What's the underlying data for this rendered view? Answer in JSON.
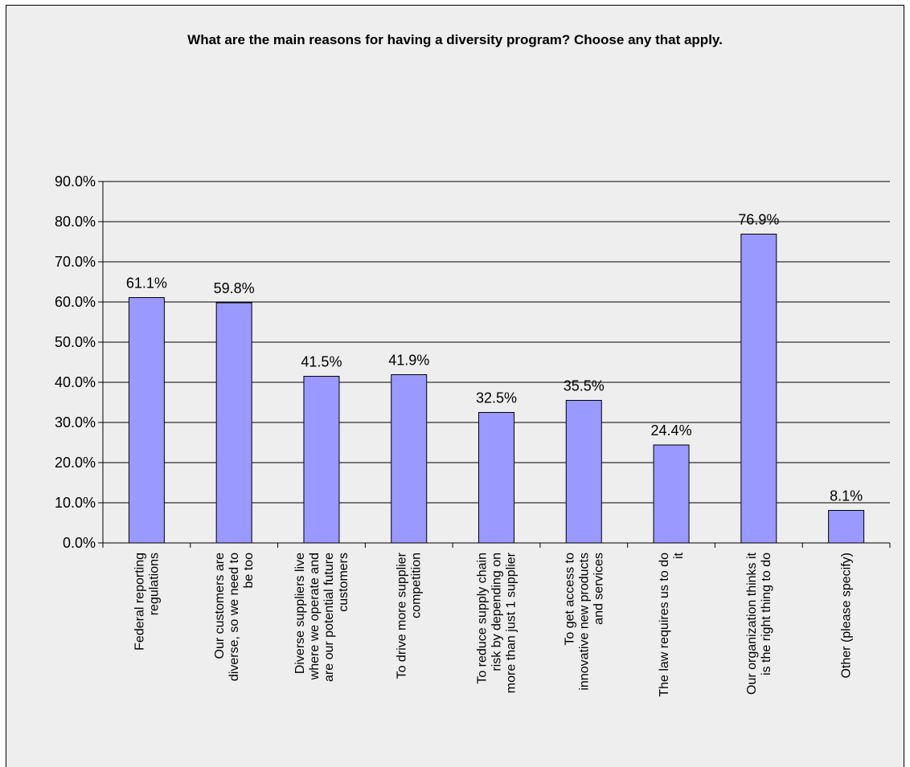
{
  "chart_data": {
    "type": "bar",
    "title": "What are the main reasons for having a diversity program? Choose any that apply.",
    "categories": [
      [
        "Federal reporting",
        "regulations"
      ],
      [
        "Our customers are",
        "diverse, so we need to",
        "be too"
      ],
      [
        "Diverse suppliers live",
        "where we operate and",
        "are our potential future",
        "customers"
      ],
      [
        "To drive more supplier",
        "competition"
      ],
      [
        "To reduce supply chain",
        "risk by depending on",
        "more than just 1 supplier"
      ],
      [
        "To get access to",
        "innovative new products",
        "and services"
      ],
      [
        "The law requires us to do",
        "it"
      ],
      [
        "Our organization thinks it",
        "is the right thing to do"
      ],
      [
        "Other (please specify)"
      ]
    ],
    "values": [
      61.1,
      59.8,
      41.5,
      41.9,
      32.5,
      35.5,
      24.4,
      76.9,
      8.1
    ],
    "data_labels": [
      "61.1%",
      "59.8%",
      "41.5%",
      "41.9%",
      "32.5%",
      "35.5%",
      "24.4%",
      "76.9%",
      "8.1%"
    ],
    "ylim": [
      0,
      90
    ],
    "y_ticks": [
      "0.0%",
      "10.0%",
      "20.0%",
      "30.0%",
      "40.0%",
      "50.0%",
      "60.0%",
      "70.0%",
      "80.0%",
      "90.0%"
    ],
    "grid": true,
    "xlabel": "",
    "ylabel": "",
    "colors": {
      "bar_fill": "#9999ff",
      "bar_stroke": "#000000",
      "gridline": "#000000",
      "background": "#eeeeee"
    }
  }
}
